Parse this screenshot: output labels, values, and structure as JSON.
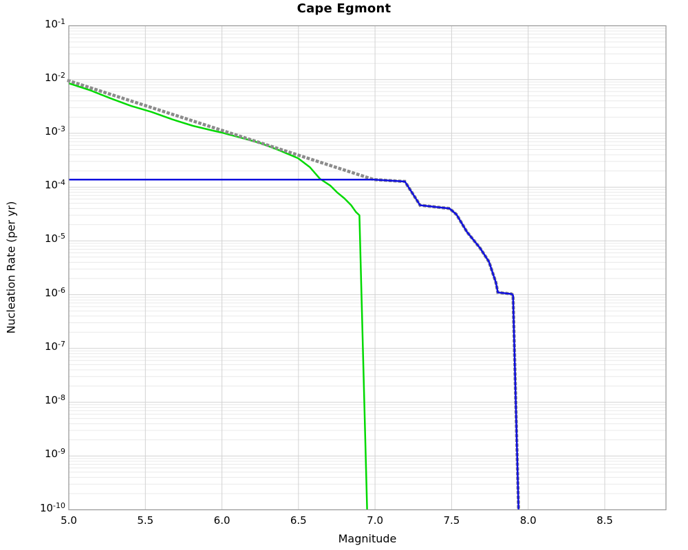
{
  "figure": {
    "background": "#ffffff",
    "spine_color": "#9a9a9a",
    "grid_major_color": "#d2d2d2",
    "grid_minor_color": "#e9e9e9",
    "text_color": "#000000"
  },
  "chart_data": {
    "type": "line",
    "title": "Cape Egmont",
    "xlabel": "Magnitude",
    "ylabel": "Nucleation Rate (per yr)",
    "legend": "none",
    "grid": {
      "major": true,
      "minor_y_log": true,
      "minor_x": false
    },
    "x_axis": {
      "min": 5.0,
      "max": 8.9,
      "ticks": [
        5.0,
        5.5,
        6.0,
        6.5,
        7.0,
        7.5,
        8.0,
        8.5
      ],
      "tick_labels": [
        "5.0",
        "5.5",
        "6.0",
        "6.5",
        "7.0",
        "7.5",
        "8.0",
        "8.5"
      ]
    },
    "y_axis": {
      "scale": "log",
      "min_exp": -10,
      "max_exp": -1,
      "tick_exponents": [
        -1,
        -2,
        -3,
        -4,
        -5,
        -6,
        -7,
        -8,
        -9,
        -10
      ]
    },
    "series": [
      {
        "name": "tapered-magnitude-frequency-green",
        "color": "#00d900",
        "style": "solid",
        "width": 2.5,
        "points": [
          [
            5.0,
            0.0085
          ],
          [
            5.135,
            0.0064
          ],
          [
            5.27,
            0.0045
          ],
          [
            5.405,
            0.00325
          ],
          [
            5.54,
            0.0025
          ],
          [
            5.675,
            0.00182
          ],
          [
            5.81,
            0.00138
          ],
          [
            5.944,
            0.00112
          ],
          [
            6.0,
            0.00103
          ],
          [
            6.124,
            0.00083
          ],
          [
            6.25,
            0.00066
          ],
          [
            6.37,
            0.00049
          ],
          [
            6.497,
            0.000345
          ],
          [
            6.574,
            0.000235
          ],
          [
            6.64,
            0.000143
          ],
          [
            6.709,
            0.000106
          ],
          [
            6.754,
            7.9e-05
          ],
          [
            6.799,
            6.2e-05
          ],
          [
            6.844,
            4.6e-05
          ],
          [
            6.875,
            3.45e-05
          ],
          [
            6.898,
            3e-05
          ],
          [
            6.948,
            1e-10
          ]
        ]
      },
      {
        "name": "gutenberg-richter-dotted-gray",
        "color": "#8b8b8b",
        "style": "dotted",
        "width": 4.6,
        "points": [
          [
            5.0,
            0.0095
          ],
          [
            6.992,
            0.000138
          ],
          [
            7.195,
            0.000127
          ],
          [
            7.294,
            4.6e-05
          ],
          [
            7.487,
            4e-05
          ],
          [
            7.532,
            3.1e-05
          ],
          [
            7.6,
            1.47e-05
          ],
          [
            7.685,
            7.4e-06
          ],
          [
            7.744,
            4.1e-06
          ],
          [
            7.789,
            1.7e-06
          ],
          [
            7.802,
            1.1e-06
          ],
          [
            7.892,
            1.03e-06
          ],
          [
            7.901,
            9.7e-07
          ],
          [
            7.937,
            1e-10
          ]
        ]
      },
      {
        "name": "nucleation-rate-blue",
        "color": "#0f0fdf",
        "style": "solid",
        "width": 2.5,
        "points": [
          [
            5.0,
            0.000138
          ],
          [
            6.992,
            0.000138
          ],
          [
            7.195,
            0.000127
          ],
          [
            7.294,
            4.6e-05
          ],
          [
            7.487,
            4e-05
          ],
          [
            7.532,
            3.1e-05
          ],
          [
            7.6,
            1.47e-05
          ],
          [
            7.685,
            7.4e-06
          ],
          [
            7.744,
            4.1e-06
          ],
          [
            7.789,
            1.7e-06
          ],
          [
            7.802,
            1.1e-06
          ],
          [
            7.892,
            1.03e-06
          ],
          [
            7.901,
            9.7e-07
          ],
          [
            7.937,
            1e-10
          ]
        ]
      }
    ]
  }
}
